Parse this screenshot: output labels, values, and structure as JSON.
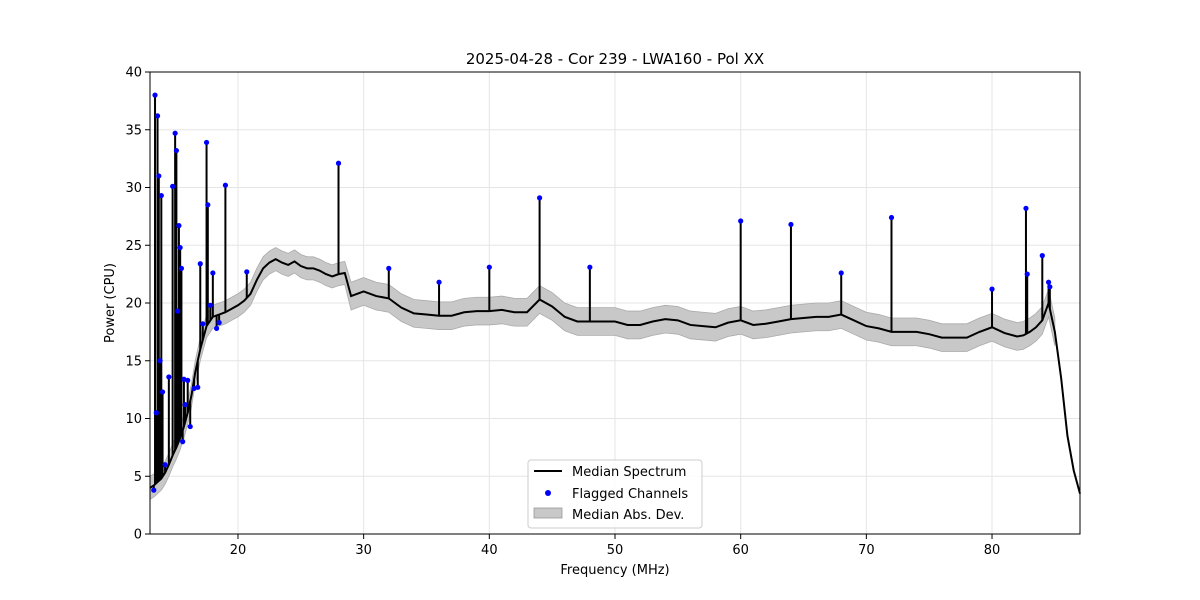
{
  "chart_data": {
    "type": "line",
    "title": "2025-04-28 - Cor 239 - LWA160 - Pol XX",
    "xlabel": "Frequency (MHz)",
    "ylabel": "Power (CPU)",
    "xlim": [
      13,
      87
    ],
    "ylim": [
      0,
      40
    ],
    "x_ticks": [
      20,
      30,
      40,
      50,
      60,
      70,
      80
    ],
    "x_tick_labels": [
      "20",
      "30",
      "40",
      "50",
      "60",
      "70",
      "80"
    ],
    "y_ticks": [
      0,
      5,
      10,
      15,
      20,
      25,
      30,
      35,
      40
    ],
    "y_tick_labels": [
      "0",
      "5",
      "10",
      "15",
      "20",
      "25",
      "30",
      "35",
      "40"
    ],
    "grid": true,
    "legend_position": "bottom-center",
    "series": [
      {
        "name": "Median Spectrum",
        "style": "line",
        "color": "#000000",
        "x": [
          13.0,
          13.3,
          13.6,
          13.9,
          14.2,
          14.5,
          14.8,
          15.1,
          15.4,
          15.7,
          16.0,
          16.3,
          16.6,
          17.0,
          17.5,
          18.0,
          18.5,
          19.0,
          19.5,
          20.0,
          20.5,
          21.0,
          21.5,
          22.0,
          22.5,
          23.0,
          23.5,
          24.0,
          24.5,
          25.0,
          25.5,
          26.0,
          26.5,
          27.0,
          27.5,
          28.0,
          28.5,
          29.0,
          30.0,
          31.0,
          32.0,
          33.0,
          34.0,
          35.0,
          36.0,
          37.0,
          38.0,
          39.0,
          40.0,
          41.0,
          42.0,
          43.0,
          44.0,
          45.0,
          46.0,
          47.0,
          48.0,
          49.0,
          50.0,
          51.0,
          52.0,
          53.0,
          54.0,
          55.0,
          56.0,
          57.0,
          58.0,
          59.0,
          60.0,
          61.0,
          62.0,
          63.0,
          64.0,
          65.0,
          66.0,
          67.0,
          68.0,
          69.0,
          70.0,
          71.0,
          72.0,
          73.0,
          74.0,
          75.0,
          76.0,
          77.0,
          78.0,
          79.0,
          80.0,
          81.0,
          82.0,
          82.5,
          83.0,
          83.5,
          84.0,
          84.5,
          85.0,
          85.5,
          86.0,
          86.5,
          87.0
        ],
        "values": [
          4.0,
          4.2,
          4.5,
          4.8,
          5.3,
          6.0,
          6.8,
          7.5,
          8.3,
          9.3,
          10.5,
          12.0,
          14.0,
          16.0,
          18.0,
          18.8,
          19.0,
          19.2,
          19.5,
          19.8,
          20.2,
          20.8,
          22.0,
          23.0,
          23.5,
          23.8,
          23.5,
          23.3,
          23.6,
          23.2,
          23.0,
          23.0,
          22.8,
          22.5,
          22.3,
          22.5,
          22.6,
          20.6,
          21.0,
          20.6,
          20.4,
          19.6,
          19.1,
          19.0,
          18.9,
          18.9,
          19.2,
          19.3,
          19.3,
          19.4,
          19.2,
          19.2,
          20.3,
          19.7,
          18.8,
          18.4,
          18.4,
          18.4,
          18.4,
          18.1,
          18.1,
          18.4,
          18.6,
          18.5,
          18.1,
          18.0,
          17.9,
          18.3,
          18.5,
          18.1,
          18.2,
          18.4,
          18.6,
          18.7,
          18.8,
          18.8,
          19.0,
          18.5,
          18.0,
          17.8,
          17.5,
          17.5,
          17.5,
          17.3,
          17.0,
          17.0,
          17.0,
          17.5,
          17.9,
          17.4,
          17.1,
          17.2,
          17.5,
          17.9,
          18.5,
          20.0,
          17.5,
          13.5,
          8.5,
          5.5,
          3.5
        ]
      },
      {
        "name": "Median Abs. Dev.",
        "style": "band",
        "color": "#c8c8c8",
        "half_width_mhz_lt_29": 1.0,
        "half_width_mhz_ge_29": 1.2
      },
      {
        "name": "Flagged Channels",
        "style": "scatter",
        "color": "#0000ff",
        "x": [
          13.3,
          13.4,
          13.5,
          13.6,
          13.7,
          13.8,
          13.9,
          14.0,
          14.2,
          14.5,
          14.8,
          15.0,
          15.1,
          15.2,
          15.3,
          15.4,
          15.5,
          15.6,
          15.7,
          15.8,
          16.0,
          16.2,
          16.5,
          16.8,
          17.0,
          17.2,
          17.5,
          17.6,
          17.8,
          18.0,
          18.3,
          18.5,
          19.0,
          20.7,
          28.0,
          32.0,
          36.0,
          40.0,
          44.0,
          48.0,
          60.0,
          64.0,
          68.0,
          72.0,
          80.0,
          82.7,
          82.8,
          84.0,
          84.5,
          84.6
        ],
        "values": [
          3.8,
          38.0,
          10.5,
          36.2,
          31.0,
          15.0,
          29.3,
          12.3,
          6.0,
          13.6,
          30.1,
          34.7,
          33.2,
          19.3,
          26.7,
          24.8,
          23.0,
          8.0,
          13.4,
          11.2,
          13.3,
          9.3,
          12.6,
          12.7,
          23.4,
          18.2,
          33.9,
          28.5,
          19.8,
          22.6,
          17.8,
          18.3,
          30.2,
          22.7,
          32.1,
          23.0,
          21.8,
          23.1,
          29.1,
          23.1,
          27.1,
          26.8,
          22.6,
          27.4,
          21.2,
          28.2,
          22.5,
          24.1,
          21.8,
          21.4
        ]
      }
    ],
    "legend": [
      {
        "label": "Median Spectrum",
        "type": "line",
        "color": "#000000"
      },
      {
        "label": "Flagged Channels",
        "type": "marker",
        "color": "#0000ff"
      },
      {
        "label": "Median Abs. Dev.",
        "type": "patch",
        "color": "#c8c8c8"
      }
    ]
  }
}
